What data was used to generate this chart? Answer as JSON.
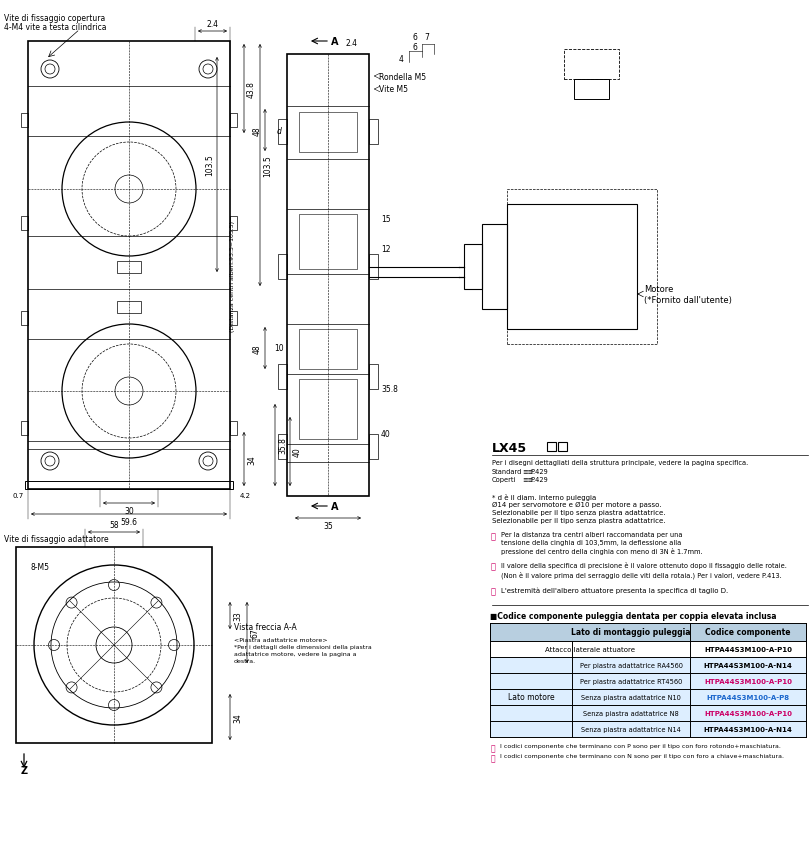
{
  "bg": "#ffffff",
  "black": "#000000",
  "magenta": "#cc0066",
  "blue_text": "#1a66cc",
  "table_hdr_bg": "#b8cfe0",
  "table_row_bg": "#ddeeff",
  "label_tl1": "Vite di fissaggio copertura",
  "label_tl2": "4-M4 vite a testa cilindrica",
  "label_bl": "Vite di fissaggio adattatore",
  "label_rondella": "Rondella M5",
  "label_vite": "Vite M5",
  "label_motore": "Motore\n(*Fornito dall'utente)",
  "label_vista": "Vista freccia A-A",
  "label_piastra": "<Piastra adattatrice motore>\n*Per i dettagli delle dimensioni della piastra\nadattatrice motore, vedere la pagina a\ndestra.",
  "lx45_title": "LX45",
  "lx45_desc1": "Per i disegni dettagliati della struttura principale, vedere la pagina specifica.",
  "lx45_desc2": "Standard",
  "lx45_desc3": "P.429",
  "lx45_desc4": "Coperti",
  "lx45_desc5": "P.429",
  "note_star1": "* d è il diam. interno puleggia",
  "note_star2": "Ø14 per servomotore e Ø10 per motore a passo.",
  "note_star3": "Selezionabile per il tipo senza piastra adattatrice.",
  "note_star4": "Selezionabile per il tipo senza piastra adattatrice.",
  "note1_text": "Per la distanza tra centri alberi raccomandata per una\ntensione della cinghia di 103,5mm, la deflessione alla\npressione del centro della cinghia con meno di 3N è 1.7mm.",
  "note2_text": "Il valore della specifica di precisione è il valore ottenuto dopo il fissaggio delle rotaie.\n(Non è il valore prima del serraggio delle viti della rotaia.) Per i valori, vedere P.413.",
  "note3_text": "L'estremità dell'albero attuatore presenta la specifica di taglio D.",
  "tbl_title": "■Codice componente puleggia dentata per coppia elevata inclusa",
  "tbl_h1": "Lato di montaggio puleggia",
  "tbl_h2": "Codice componente",
  "tbl_rows": [
    {
      "c1": "Attacco laterale attuatore",
      "c2": "",
      "c3": "HTPA44S3M100-A-P10",
      "color": "black",
      "span": true
    },
    {
      "c1": "Lato motore",
      "c2": "Per piastra adattatrice RA4560",
      "c3": "HTPA44S3M100-A-N14",
      "color": "black",
      "span": false
    },
    {
      "c1": "Lato motore",
      "c2": "Per piastra adattatrice RT4560",
      "c3": "HTPA44S3M100-A-P10",
      "color": "magenta",
      "span": false
    },
    {
      "c1": "Lato motore",
      "c2": "Senza piastra adattatrice N10",
      "c3": "HTPA44S3M100-A-P8",
      "color": "blue",
      "span": false
    },
    {
      "c1": "Lato motore",
      "c2": "Senza piastra adattatrice N8",
      "c3": "HTPA44S3M100-A-P10",
      "color": "magenta",
      "span": false
    },
    {
      "c1": "Lato motore",
      "c2": "Senza piastra adattatrice N14",
      "c3": "HTPA44S3M100-A-N14",
      "color": "black",
      "span": false
    }
  ],
  "fn1": "I codici componente che terminano con P sono per il tipo con foro rotondo+maschiatura.",
  "fn2": "I codici componente che terminano con N sono per il tipo con foro a chiave+maschiatura.",
  "circle_marker_color": "#cc0066"
}
